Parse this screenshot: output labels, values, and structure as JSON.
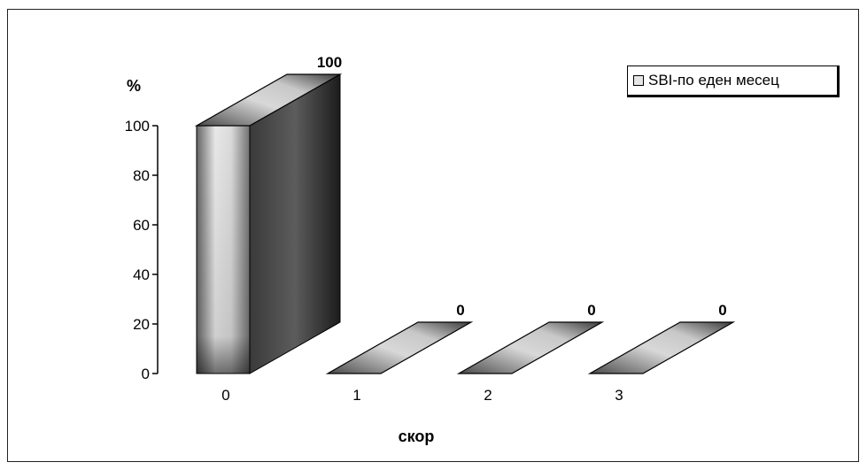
{
  "chart_data": {
    "type": "bar",
    "categories": [
      "0",
      "1",
      "2",
      "3"
    ],
    "series": [
      {
        "name": "SBI-по еден месец",
        "values": [
          100,
          0,
          0,
          0
        ]
      }
    ],
    "xlabel": "скор",
    "ylabel": "%",
    "ylim": [
      0,
      100
    ],
    "yticks": [
      0,
      20,
      40,
      60,
      80,
      100
    ],
    "data_labels": [
      "100",
      "0",
      "0",
      "0"
    ],
    "legend_position": "top-right",
    "style": "3d",
    "grid": false
  }
}
